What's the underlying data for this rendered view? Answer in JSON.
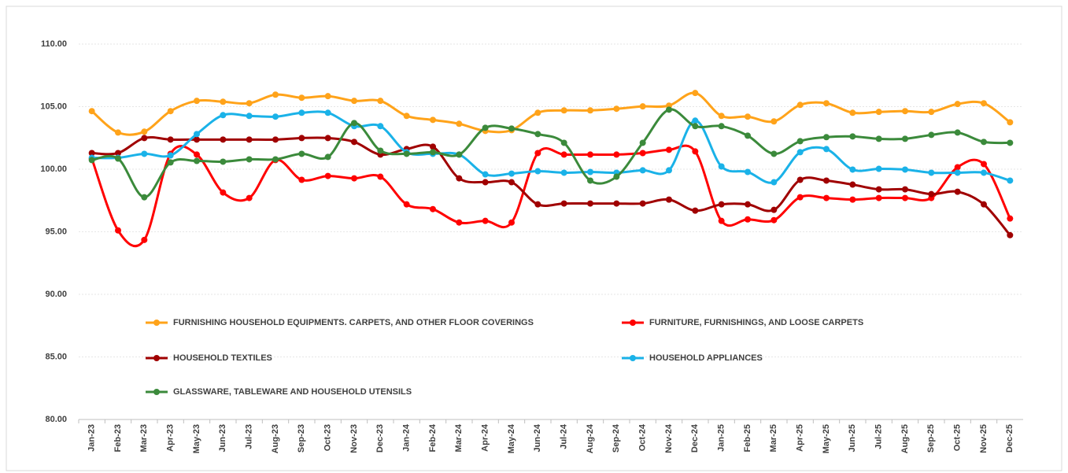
{
  "chart_data": {
    "type": "line",
    "smooth": true,
    "grid": true,
    "legend": "bottom",
    "categories": [
      "Jan-23",
      "Feb-23",
      "Mar-23",
      "Apr-23",
      "May-23",
      "Jun-23",
      "Jul-23",
      "Aug-23",
      "Sep-23",
      "Oct-23",
      "Nov-23",
      "Dec-23",
      "Jan-24",
      "Feb-24",
      "Mar-24",
      "Apr-24",
      "May-24",
      "Jun-24",
      "Jul-24",
      "Aug-24",
      "Sep-24",
      "Oct-24",
      "Nov-24",
      "Dec-24",
      "Jan-25",
      "Feb-25",
      "Mar-25",
      "Apr-25",
      "May-25",
      "Jun-25",
      "Jul-25",
      "Aug-25",
      "Sep-25",
      "Oct-25",
      "Nov-25",
      "Dec-25"
    ],
    "ylim": [
      80,
      110
    ],
    "yticks": [
      {
        "value": 80,
        "label": "80.00"
      },
      {
        "value": 85,
        "label": "85.00"
      },
      {
        "value": 90,
        "label": "90.00"
      },
      {
        "value": 95,
        "label": "95.00"
      },
      {
        "value": 100,
        "label": "100.00"
      },
      {
        "value": 105,
        "label": "105.00"
      },
      {
        "value": 110,
        "label": "110.00"
      }
    ],
    "series": [
      {
        "name": "FURNISHING HOUSEHOLD EQUIPMENTS. CARPETS, AND OTHER FLOOR COVERINGS",
        "color": "#ffa31a",
        "values": [
          104.64,
          102.93,
          103.0,
          104.64,
          105.46,
          105.39,
          105.27,
          105.96,
          105.71,
          105.84,
          105.46,
          105.46,
          104.26,
          103.94,
          103.63,
          103.06,
          103.12,
          104.51,
          104.7,
          104.7,
          104.83,
          105.02,
          105.08,
          106.09,
          104.26,
          104.2,
          103.82,
          105.14,
          105.27,
          104.51,
          104.58,
          104.64,
          104.58,
          105.21,
          105.27,
          103.75
        ]
      },
      {
        "name": "FURNITURE, FURNISHINGS, AND LOOSE CARPETS",
        "color": "#ff0000",
        "values": [
          100.85,
          95.11,
          94.35,
          101.23,
          101.17,
          98.14,
          97.7,
          100.73,
          99.15,
          99.46,
          99.27,
          99.4,
          97.19,
          96.81,
          95.74,
          95.87,
          95.74,
          101.29,
          101.17,
          101.17,
          101.17,
          101.29,
          101.55,
          101.42,
          95.87,
          95.99,
          95.93,
          97.76,
          97.7,
          97.57,
          97.7,
          97.7,
          97.7,
          100.16,
          100.41,
          96.06
        ]
      },
      {
        "name": "HOUSEHOLD TEXTILES",
        "color": "#a00000",
        "values": [
          101.29,
          101.29,
          102.49,
          102.37,
          102.37,
          102.37,
          102.37,
          102.37,
          102.49,
          102.49,
          102.18,
          101.17,
          101.61,
          101.8,
          99.27,
          98.96,
          98.96,
          97.19,
          97.26,
          97.26,
          97.26,
          97.26,
          97.57,
          96.69,
          97.19,
          97.19,
          96.75,
          99.15,
          99.09,
          98.77,
          98.39,
          98.39,
          98.01,
          98.2,
          97.19,
          94.73
        ]
      },
      {
        "name": "HOUSEHOLD APPLIANCES",
        "color": "#1ab2e8",
        "values": [
          100.91,
          100.91,
          101.23,
          101.1,
          102.81,
          104.32,
          104.26,
          104.2,
          104.51,
          104.51,
          103.44,
          103.44,
          101.36,
          101.23,
          101.17,
          99.59,
          99.65,
          99.84,
          99.72,
          99.78,
          99.72,
          99.91,
          99.91,
          103.88,
          100.22,
          99.78,
          98.96,
          101.36,
          101.61,
          99.97,
          100.03,
          99.97,
          99.72,
          99.72,
          99.72,
          99.09
        ]
      },
      {
        "name": "GLASSWARE, TABLEWARE AND HOUSEHOLD UTENSILS",
        "color": "#3b8a3b",
        "values": [
          100.73,
          100.85,
          97.76,
          100.54,
          100.66,
          100.6,
          100.79,
          100.79,
          101.23,
          100.98,
          103.69,
          101.48,
          101.23,
          101.36,
          101.17,
          103.31,
          103.25,
          102.81,
          102.11,
          99.09,
          99.4,
          102.11,
          104.76,
          103.44,
          103.44,
          102.68,
          101.23,
          102.24,
          102.56,
          102.62,
          102.43,
          102.43,
          102.74,
          102.93,
          102.18,
          102.11
        ]
      }
    ]
  }
}
